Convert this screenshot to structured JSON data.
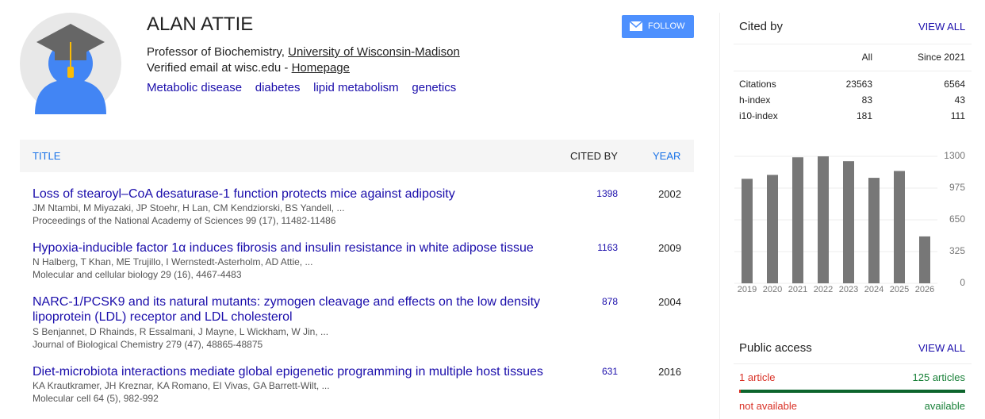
{
  "profile": {
    "name": "ALAN ATTIE",
    "position": "Professor of Biochemistry,",
    "affiliation": "University of Wisconsin-Madison",
    "email": "Verified email at wisc.edu -",
    "homepage": "Homepage",
    "interests": [
      "Metabolic disease",
      "diabetes",
      "lipid metabolism",
      "genetics"
    ],
    "follow": "FOLLOW"
  },
  "table": {
    "headers": {
      "title": "TITLE",
      "cited_by": "CITED BY",
      "year": "YEAR"
    },
    "rows": [
      {
        "title": "Loss of stearoyl–CoA desaturase-1 function protects mice against adiposity",
        "authors": "JM Ntambi, M Miyazaki, JP Stoehr, H Lan, CM Kendziorski, BS Yandell, ...",
        "venue": "Proceedings of the National Academy of Sciences 99 (17), 11482-11486",
        "cited_by": 1398,
        "year": 2002
      },
      {
        "title": "Hypoxia-inducible factor 1α induces fibrosis and insulin resistance in white adipose tissue",
        "authors": "N Halberg, T Khan, ME Trujillo, I Wernstedt-Asterholm, AD Attie, ...",
        "venue": "Molecular and cellular biology 29 (16), 4467-4483",
        "cited_by": 1163,
        "year": 2009
      },
      {
        "title": "NARC-1/PCSK9 and its natural mutants: zymogen cleavage and effects on the low density lipoprotein (LDL) receptor and LDL cholesterol",
        "authors": "S Benjannet, D Rhainds, R Essalmani, J Mayne, L Wickham, W Jin, ...",
        "venue": "Journal of Biological Chemistry 279 (47), 48865-48875",
        "cited_by": 878,
        "year": 2004
      },
      {
        "title": "Diet-microbiota interactions mediate global epigenetic programming in multiple host tissues",
        "authors": "KA Krautkramer, JH Kreznar, KA Romano, EI Vivas, GA Barrett-Wilt, ...",
        "venue": "Molecular cell 64 (5), 982-992",
        "cited_by": 631,
        "year": 2016
      }
    ]
  },
  "cited_by": {
    "title": "Cited by",
    "view_all": "VIEW ALL",
    "columns": [
      "All",
      "Since 2021"
    ],
    "rows": [
      {
        "label": "Citations",
        "all": 23563,
        "since": 6564
      },
      {
        "label": "h-index",
        "all": 83,
        "since": 43
      },
      {
        "label": "i10-index",
        "all": 181,
        "since": 111
      }
    ]
  },
  "chart_data": {
    "type": "bar",
    "categories": [
      "2019",
      "2020",
      "2021",
      "2022",
      "2023",
      "2024",
      "2025",
      "2026"
    ],
    "values": [
      1070,
      1110,
      1290,
      1300,
      1250,
      1080,
      1150,
      480
    ],
    "color": "#777777",
    "ylim": [
      0,
      1300
    ],
    "yticks": [
      0,
      325,
      650,
      975,
      1300
    ],
    "grid": true
  },
  "public_access": {
    "title": "Public access",
    "view_all": "VIEW ALL",
    "not_available_count": "1 article",
    "available_count": "125 articles",
    "not_available": "not available",
    "available": "available"
  }
}
